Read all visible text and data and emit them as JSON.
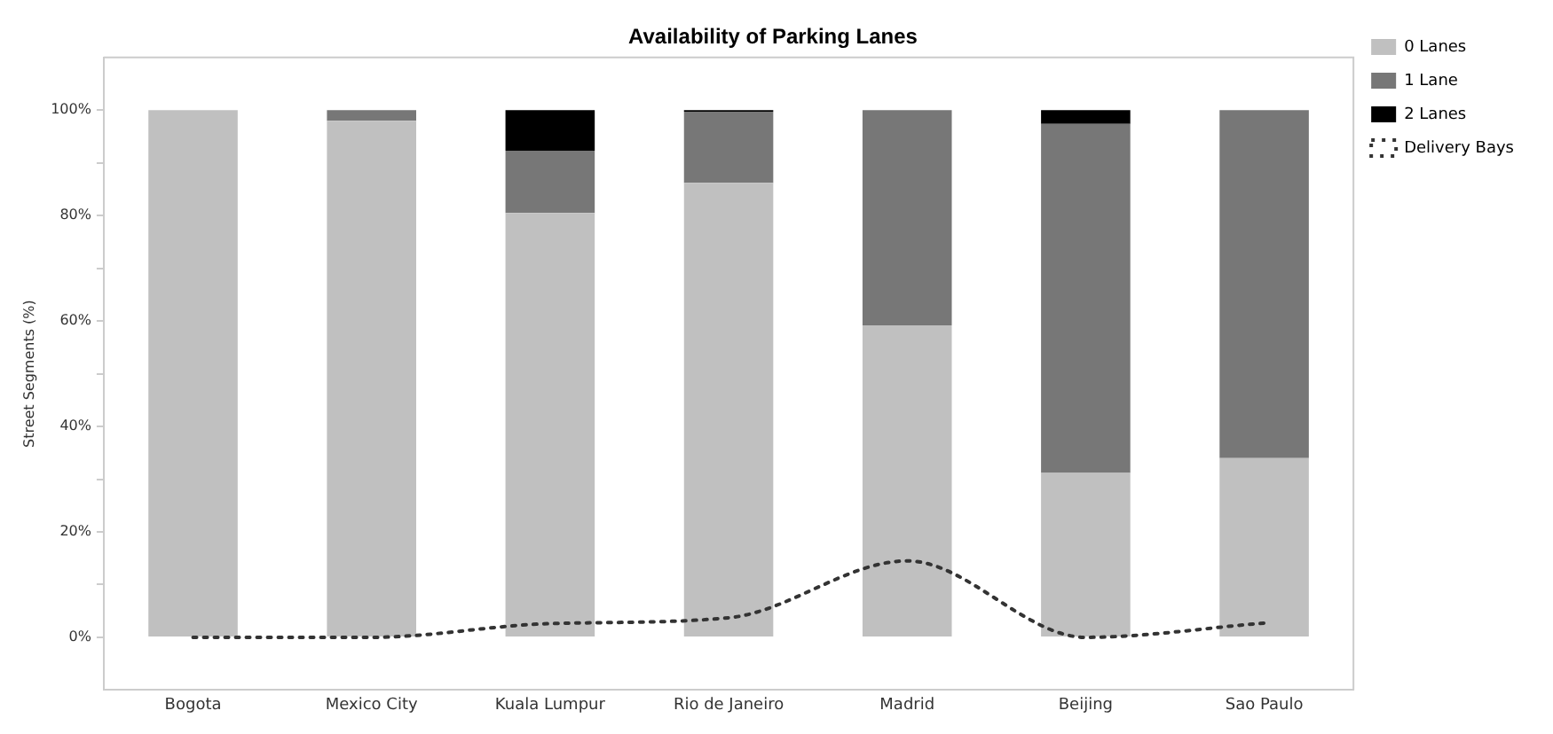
{
  "chart_data": {
    "type": "bar",
    "title": "Availability of Parking Lanes",
    "ylabel": "Street Segments (%)",
    "categories": [
      "Bogota",
      "Mexico City",
      "Kuala Lumpur",
      "Rio de Janeiro",
      "Madrid",
      "Beijing",
      "Sao Paulo"
    ],
    "stacked": true,
    "series": [
      {
        "name": "0 Lanes",
        "color": "#c0c0c0",
        "values": [
          100,
          98,
          80.5,
          86.2,
          59.2,
          31.2,
          34
        ]
      },
      {
        "name": "1 Lane",
        "color": "#777777",
        "values": [
          0,
          2,
          11.8,
          13.5,
          40.8,
          66.2,
          66
        ]
      },
      {
        "name": "2 Lanes",
        "color": "#000000",
        "values": [
          0,
          0,
          7.7,
          0.3,
          0,
          2.6,
          0
        ]
      },
      {
        "name": "Delivery Bays",
        "type": "line",
        "color": "#333333",
        "line_style": "dotted",
        "values": [
          0,
          0,
          2.6,
          3.7,
          14.5,
          0,
          2.7
        ]
      }
    ],
    "ylim": [
      -10,
      110
    ],
    "yticks": [
      {
        "value": 0,
        "label": "0%"
      },
      {
        "value": 10,
        "label": null
      },
      {
        "value": 20,
        "label": "20%"
      },
      {
        "value": 30,
        "label": null
      },
      {
        "value": 40,
        "label": "40%"
      },
      {
        "value": 50,
        "label": null
      },
      {
        "value": 60,
        "label": "60%"
      },
      {
        "value": 70,
        "label": null
      },
      {
        "value": 80,
        "label": "80%"
      },
      {
        "value": 90,
        "label": null
      },
      {
        "value": 100,
        "label": "100%"
      }
    ],
    "grid": false,
    "legend": "top right",
    "marker": "none"
  }
}
